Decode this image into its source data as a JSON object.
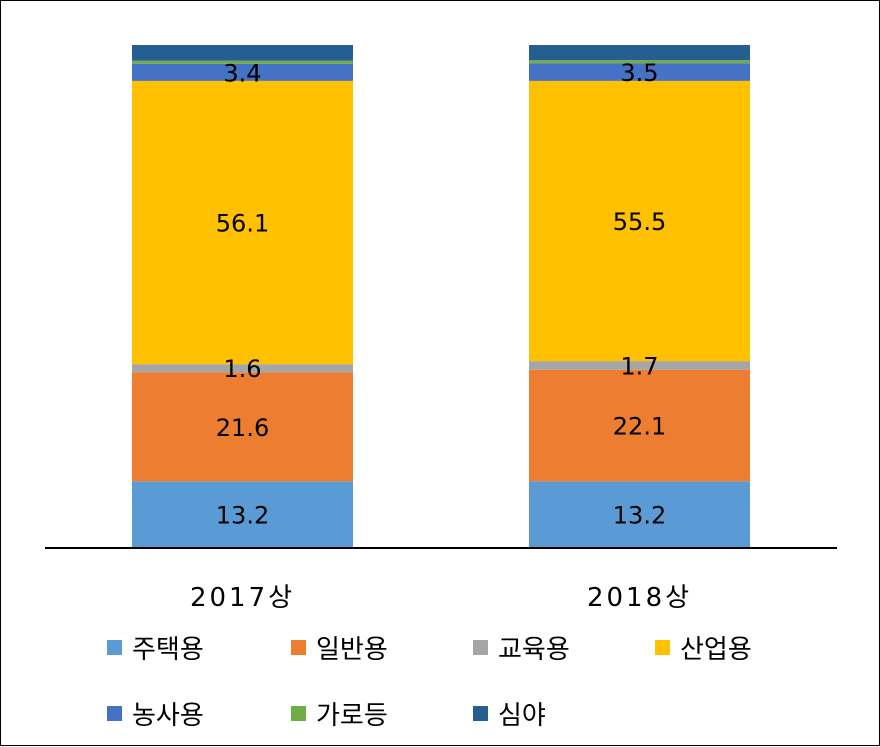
{
  "chart_data": {
    "type": "bar",
    "stacked": true,
    "categories": [
      "2017상",
      "2018상"
    ],
    "series": [
      {
        "name": "주택용",
        "color": "#5b9bd5",
        "values": [
          13.2,
          13.2
        ],
        "labels": [
          "13.2",
          "13.2"
        ]
      },
      {
        "name": "일반용",
        "color": "#ed7d31",
        "values": [
          21.6,
          22.1
        ],
        "labels": [
          "21.6",
          "22.1"
        ]
      },
      {
        "name": "교육용",
        "color": "#a5a5a5",
        "values": [
          1.6,
          1.7
        ],
        "labels": [
          "1.6",
          "1.7"
        ]
      },
      {
        "name": "산업용",
        "color": "#ffc000",
        "values": [
          56.1,
          55.5
        ],
        "labels": [
          "56.1",
          "55.5"
        ]
      },
      {
        "name": "농사용",
        "color": "#4472c4",
        "values": [
          3.4,
          3.5
        ],
        "labels": [
          "3.4",
          "3.5"
        ]
      },
      {
        "name": "가로등",
        "color": "#70ad47",
        "values": [
          0.6,
          0.6
        ],
        "labels": [
          "",
          ""
        ]
      },
      {
        "name": "심야",
        "color": "#255e91",
        "values": [
          3.1,
          3.0
        ],
        "labels": [
          "",
          ""
        ]
      }
    ],
    "ylim": [
      0,
      100
    ],
    "grid": false,
    "legend": "bottom"
  }
}
